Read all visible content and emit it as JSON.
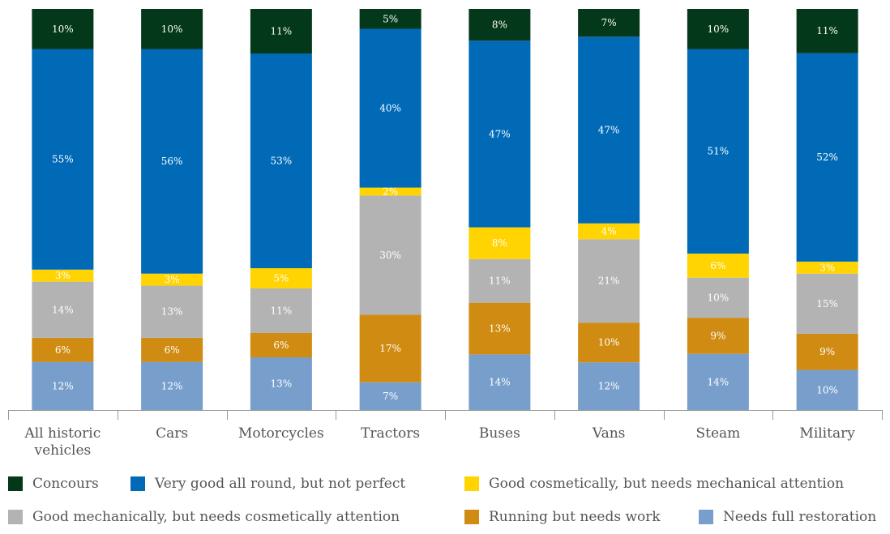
{
  "chart_data": {
    "type": "bar",
    "stacked": true,
    "orientation": "vertical",
    "normalized_percent": true,
    "categories": [
      [
        "All historic",
        "vehicles"
      ],
      [
        "Cars"
      ],
      [
        "Motorcycles"
      ],
      [
        "Tractors"
      ],
      [
        "Buses"
      ],
      [
        "Vans"
      ],
      [
        "Steam"
      ],
      [
        "Military"
      ]
    ],
    "series": [
      {
        "name": "Needs full restoration",
        "color": "#789fcc",
        "values": [
          12,
          12,
          13,
          7,
          14,
          12,
          14,
          10
        ]
      },
      {
        "name": "Running but needs work",
        "color": "#d08c12",
        "values": [
          6,
          6,
          6,
          17,
          13,
          10,
          9,
          9
        ]
      },
      {
        "name": "Good mechanically, but needs cosmetically attention",
        "color": "#b3b3b3",
        "values": [
          14,
          13,
          11,
          30,
          11,
          21,
          10,
          15
        ]
      },
      {
        "name": "Good cosmetically, but needs mechanical attention",
        "color": "#ffd400",
        "values": [
          3,
          3,
          5,
          2,
          8,
          4,
          6,
          3
        ]
      },
      {
        "name": "Very good all round, but not perfect",
        "color": "#006ab7",
        "values": [
          55,
          56,
          53,
          40,
          47,
          47,
          51,
          52
        ]
      },
      {
        "name": "Concours",
        "color": "#04381a",
        "values": [
          10,
          10,
          11,
          5,
          8,
          7,
          10,
          11
        ]
      }
    ],
    "value_suffix": "%",
    "ylim": [
      0,
      100
    ],
    "grid": false,
    "legend_position": "bottom"
  },
  "legend": [
    {
      "label": "Concours",
      "color": "#04381a"
    },
    {
      "label": "Very good all round, but not perfect",
      "color": "#006ab7"
    },
    {
      "label": "Good cosmetically, but needs mechanical attention",
      "color": "#ffd400"
    },
    {
      "label": "Good mechanically, but needs cosmetically attention",
      "color": "#b3b3b3"
    },
    {
      "label": "Running but needs work",
      "color": "#d08c12"
    },
    {
      "label": "Needs full restoration",
      "color": "#789fcc"
    }
  ]
}
